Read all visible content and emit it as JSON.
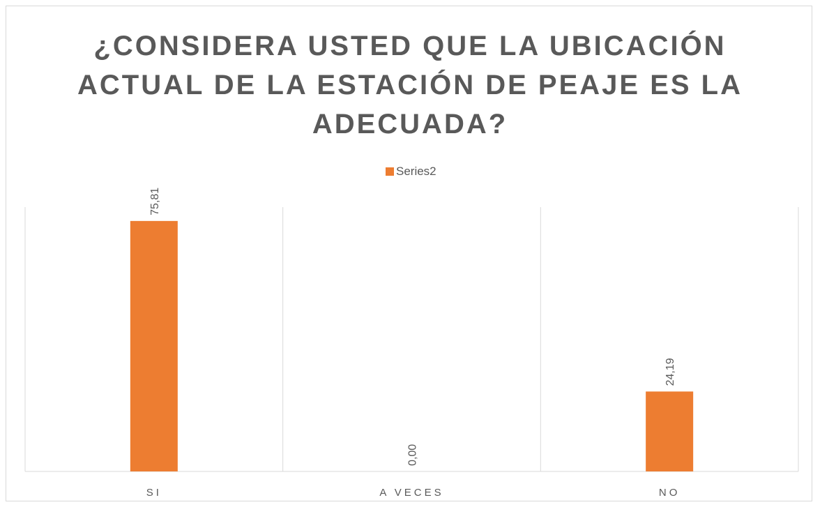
{
  "chart_data": {
    "type": "bar",
    "title": "¿CONSIDERA USTED QUE LA UBICACIÓN ACTUAL DE LA ESTACIÓN DE PEAJE ES LA ADECUADA?",
    "categories": [
      "SI",
      "A VECES",
      "NO"
    ],
    "series": [
      {
        "name": "Series2",
        "color": "#ed7d31",
        "values": [
          75.81,
          0,
          24.19
        ],
        "value_labels": [
          "75,81",
          "0,00",
          "24,19"
        ]
      }
    ],
    "ylim": [
      0,
      80
    ],
    "legend": "top"
  }
}
